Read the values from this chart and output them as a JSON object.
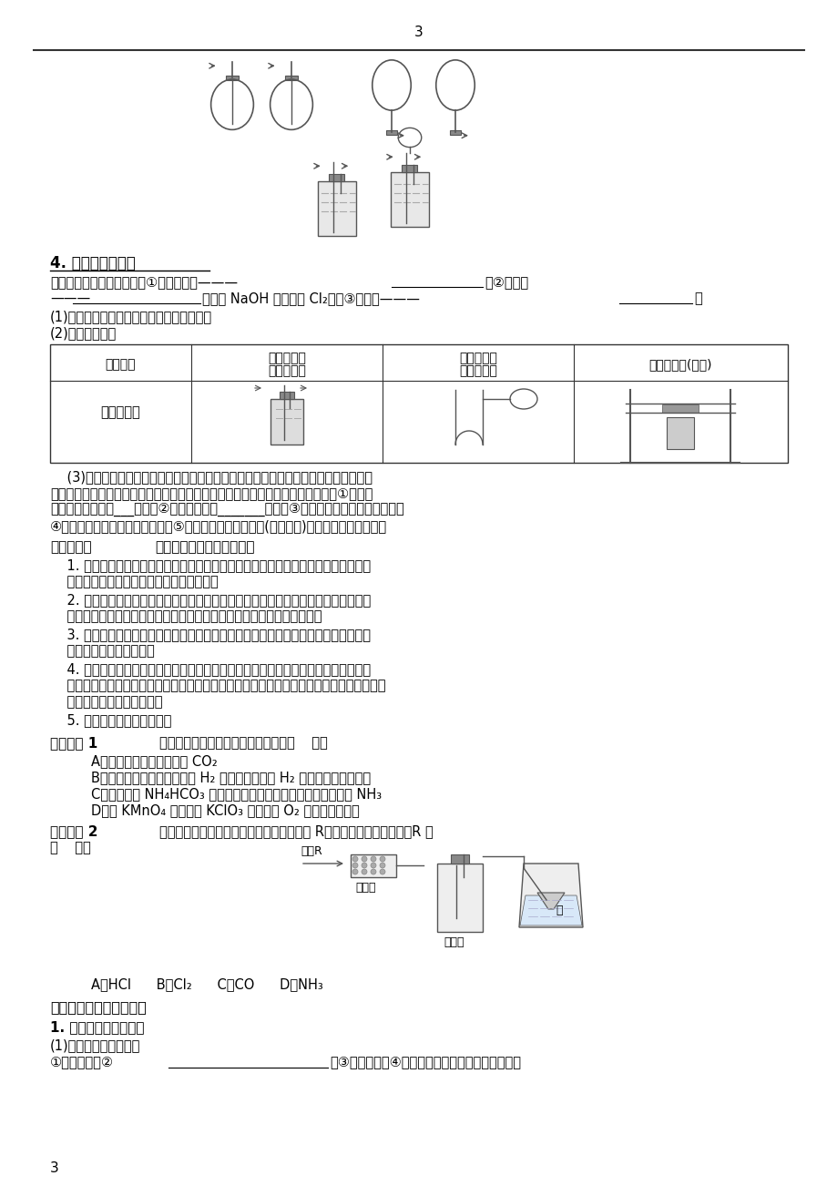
{
  "page_number": "3",
  "background_color": "#ffffff",
  "text_color": "#000000",
  "line_color": "#333333",
  "content": {
    "section4_title": "4. 净化与干燥装置",
    "tail_gas_text1": "尾气吸收处理装置有三种：①用倒扣漏斗———",
    "tail_gas_text2": "；②玻璃管",
    "tail_gas_text3": "———",
    "tail_gas_text4": "（如用 NaOH 溶液吸收 Cl₂）；③点燃法———",
    "tail_gas_text5": "。",
    "design_principle": "(1)设计原则：根据净化药品的状态及条件。",
    "device_types": "(2)装置基本类型",
    "table_headers": [
      "装置类型",
      "液体除杂剂\n（不加热）",
      "固体除杂剂\n（不加热）",
      "固体除杂剂(加热)"
    ],
    "table_row1": [
      "装置示意图",
      "",
      "",
      ""
    ],
    "para3_title": "(3)气体的净化剂的选择：",
    "para3_text": "选择气体吸收剂应根据气体的性质和杂质的性质而确定，所选用的吸收剂只能吸收气体中的杂质，而不能与被提纯的气体反应。一般情况下：①易溶于水的气体杂质可用___吸收；②酸性杂质可用_______吸收；③碱性杂质可用酸性物质吸收；④水分可用浓硫酸或碱石灰吸收；⑤能与杂质反应生成沉淀(或可溶物)的物质可作为吸收剂。",
    "special_note_bold": "特别提示：",
    "special_note_text": "气体制备实验应注意的问题",
    "notes": [
      "1. 看药品和装置是部分给出还是有剩余。若药品和装置只部分给出，则应需要作必要的补充；若有剩余，则应进行筛选和淘汰。",
      "2. 题目条件有无特殊要求。如采用最简单或最合理的实验步骤，这些要求对我们考虑反应原理、选择药品和装置，确定操作步骤都作了限定，必须高度重视。",
      "3. 实验过程中的隐蔽性操作。如某些必要的干燥、除杂、冷凝等，这些都是实验中必不可少的，容易被忽略。",
      "4. 药品的名称和仪器的规格。有些题目要求指出药品的名称，这类问题最难答准确，如有些药品的准确描述为：硫酸铜粉末、澄清石灰水、酸性高锰酸钾溶液、浓硫酸等。此外也应注意某些仪器的规格。",
      "5. 会画简单的实验装置图。"
    ],
    "exercise1_bold": "即时训练 1",
    "exercise1_text": "下列关于气体制备的说法不正确的是（    ）。",
    "exercise1_options": [
      "A．用碳酸钠粉末可以制备 CO₂",
      "B．用铁片和稀硫酸反应制取 H₂ 时，为加快产生 H₂ 的速率可改用浓硫酸",
      "C．加热分解 NH₄HCO₃ 固体，将所得的气体进行适当处理可获得 NH₃",
      "D．用 KMnO₄ 固体和用 KClO₃ 固体制备 O₂ 的装置完全相同"
    ],
    "exercise2_bold": "即时训练 2",
    "exercise2_text": "实验室里可按如图所示装置干燥、收集气体 R，多余的气体用水吸收，R 是\n（    ）。",
    "exercise2_diagram_labels": [
      "气体R",
      "干燥管",
      "储气瓶",
      "水"
    ],
    "exercise2_options": "A．HCl    B．Cl₂    C．CO    D．NH₃",
    "section2_title": "二、化学实验方案的设计",
    "section2_sub1": "1. 化学实验方案的设计",
    "section2_content1": "(1)实验方案包括的内容",
    "section2_content2": "①实验名称；②_____________；③实验原理；④实验用品（仪器、药品及规格）；"
  }
}
